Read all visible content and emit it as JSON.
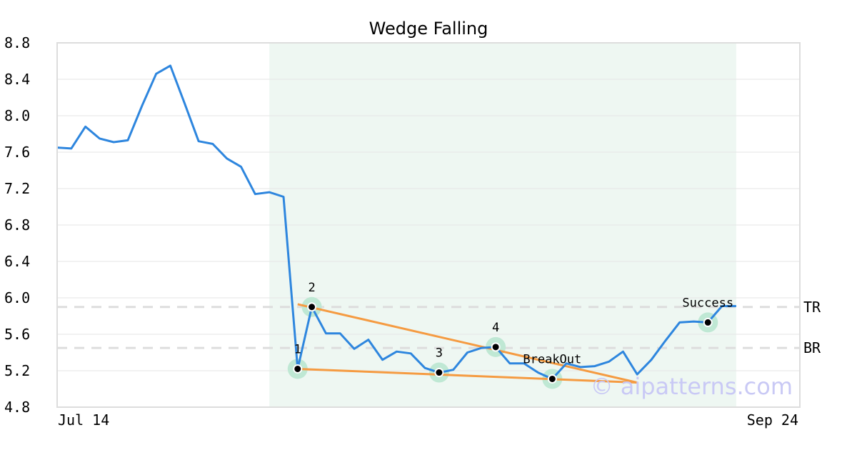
{
  "chart_data": {
    "type": "line",
    "title": "Wedge Falling",
    "xlabel": "",
    "ylabel": "",
    "ylim": [
      4.8,
      8.8
    ],
    "yticks": [
      4.8,
      5.2,
      5.6,
      6.0,
      6.4,
      6.8,
      7.2,
      7.6,
      8.0,
      8.4,
      8.8
    ],
    "ytick_labels": [
      "4.8",
      "5.2",
      "5.6",
      "6.0",
      "6.4",
      "6.8",
      "7.2",
      "7.6",
      "8.0",
      "8.4",
      "8.8"
    ],
    "x_start_label": "Jul 14",
    "x_end_label": "Sep 24",
    "grid": true,
    "series": [
      {
        "color": "#2e86de",
        "values": [
          7.65,
          7.64,
          7.88,
          7.75,
          7.71,
          7.73,
          8.11,
          8.46,
          8.55,
          8.14,
          7.72,
          7.69,
          7.53,
          7.44,
          7.14,
          7.16,
          7.11,
          5.22,
          5.9,
          5.61,
          5.61,
          5.44,
          5.54,
          5.32,
          5.41,
          5.39,
          5.23,
          5.18,
          5.21,
          5.4,
          5.45,
          5.46,
          5.28,
          5.28,
          5.18,
          5.11,
          5.28,
          5.24,
          5.25,
          5.3,
          5.41,
          5.16,
          5.32,
          5.53,
          5.73,
          5.74,
          5.73,
          5.91,
          5.91
        ]
      }
    ],
    "pattern_region": {
      "start_index": 15,
      "end_index": 48,
      "color": "#eef7f2"
    },
    "trend_lines": [
      {
        "from": [
          17,
          5.22
        ],
        "to": [
          41,
          5.07
        ],
        "color": "#f59b42"
      },
      {
        "from": [
          17,
          5.93
        ],
        "to": [
          41,
          5.07
        ],
        "color": "#f59b42"
      }
    ],
    "reference_lines": [
      {
        "label": "TR",
        "value": 5.9
      },
      {
        "label": "BR",
        "value": 5.45
      }
    ],
    "markers": [
      {
        "label": "1",
        "index": 17,
        "value": 5.22
      },
      {
        "label": "2",
        "index": 18,
        "value": 5.9
      },
      {
        "label": "3",
        "index": 27,
        "value": 5.18
      },
      {
        "label": "4",
        "index": 31,
        "value": 5.46
      },
      {
        "label": "BreakOut",
        "index": 35,
        "value": 5.11
      },
      {
        "label": "Success",
        "index": 46,
        "value": 5.73
      }
    ],
    "colors": {
      "line": "#2e86de",
      "trend": "#f59b42",
      "marker_halo": "#bfe8d4",
      "reference": "#dddddd",
      "frame": "#dddddd",
      "grid": "#e6e6e6"
    },
    "watermark": "© aipatterns.com"
  }
}
